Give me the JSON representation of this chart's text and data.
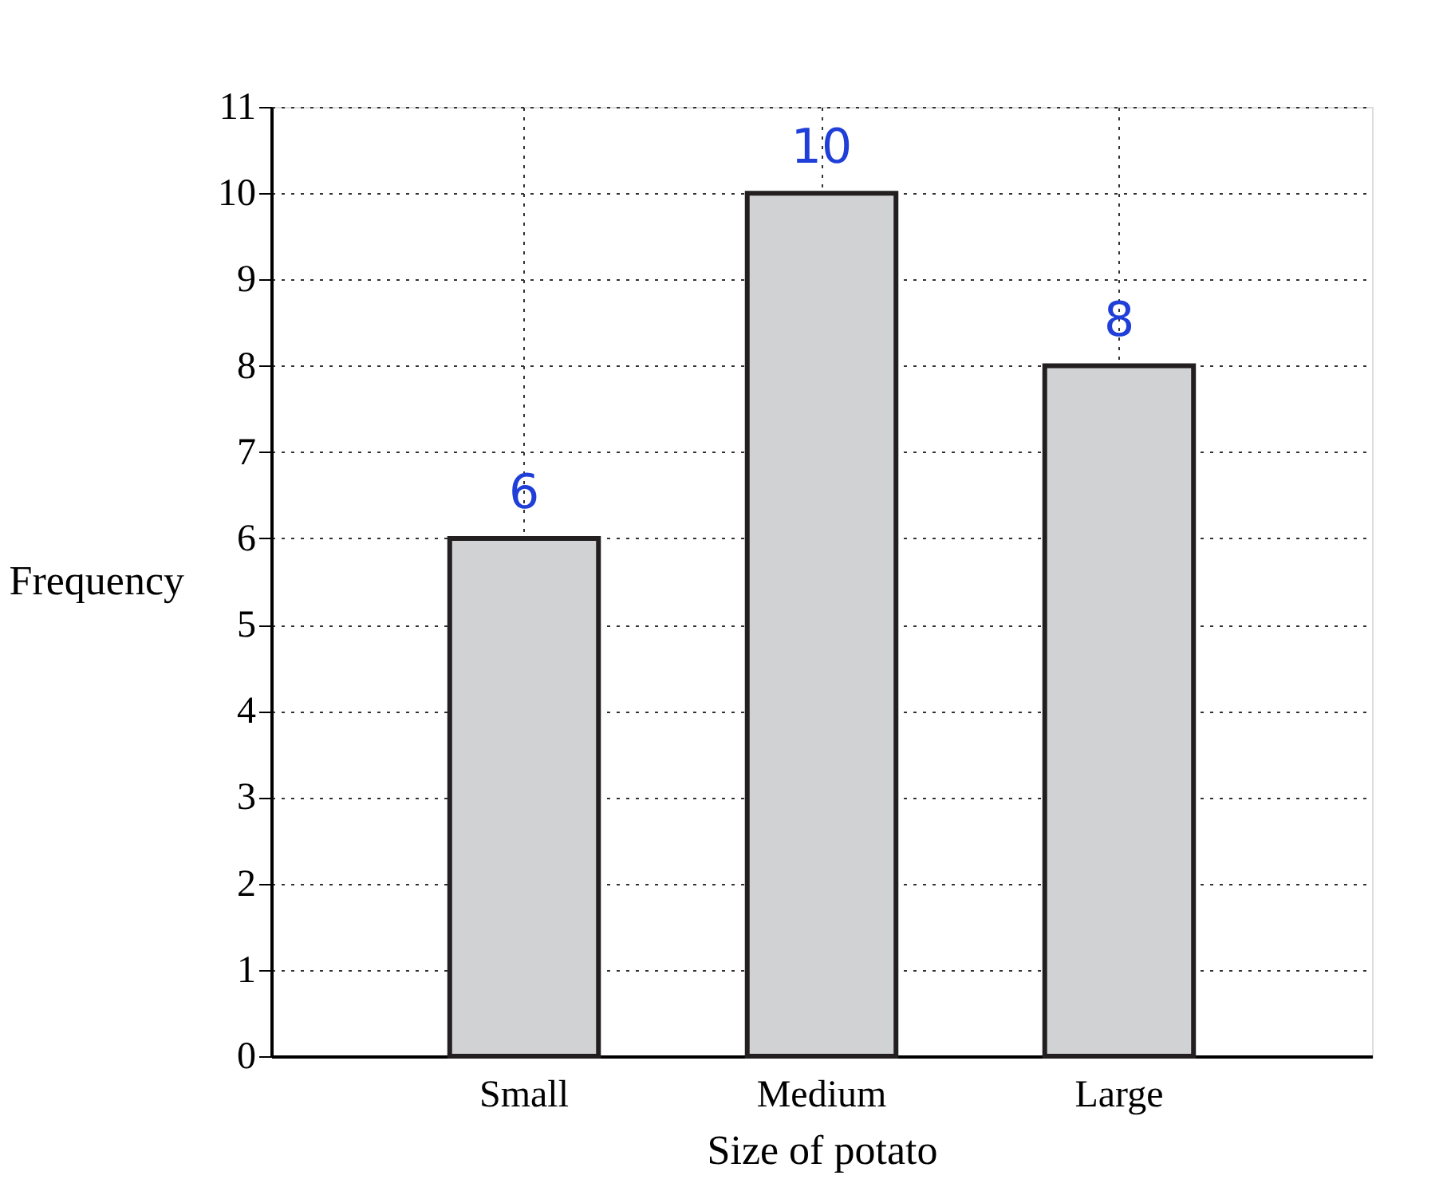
{
  "chart_data": {
    "type": "bar",
    "xlabel": "Size of potato",
    "ylabel": "Frequency",
    "categories": [
      "Small",
      "Medium",
      "Large"
    ],
    "values": [
      6,
      10,
      8
    ],
    "color": "#d1d2d4",
    "ylim": [
      0,
      11
    ],
    "yticks": [
      0,
      1,
      2,
      3,
      4,
      5,
      6,
      7,
      8,
      9,
      10,
      11
    ],
    "grid": true,
    "data_labels": true
  }
}
